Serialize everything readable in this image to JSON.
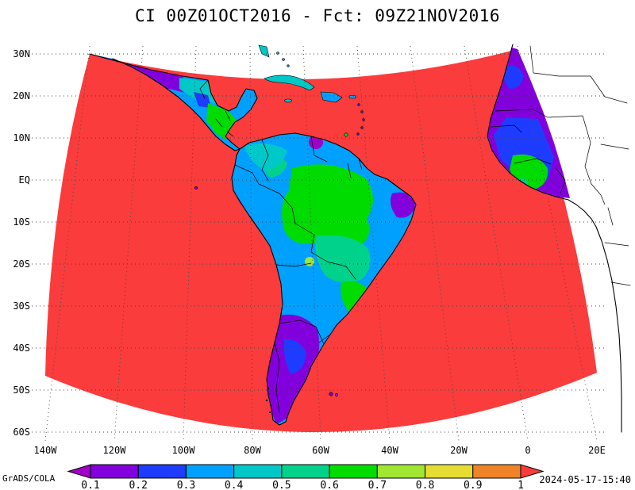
{
  "title": "CI 00Z01OCT2016 - Fct: 09Z21NOV2016",
  "map": {
    "lat_labels": [
      "30N",
      "20N",
      "10N",
      "EQ",
      "10S",
      "20S",
      "30S",
      "40S",
      "50S",
      "60S"
    ],
    "lon_labels": [
      "140W",
      "120W",
      "100W",
      "80W",
      "60W",
      "40W",
      "20W",
      "0",
      "20E"
    ],
    "ocean_fill_color": "#fa3c3c",
    "background_color": "#ffffff",
    "grid_style": "dotted"
  },
  "colorbar": {
    "tick_labels": [
      "0.1",
      "0.2",
      "0.3",
      "0.4",
      "0.5",
      "0.6",
      "0.7",
      "0.8",
      "0.9",
      "1"
    ],
    "colors": [
      "#a000c8",
      "#8200dc",
      "#1e3cff",
      "#00a0ff",
      "#00c8c8",
      "#00d28c",
      "#00dc00",
      "#a0e632",
      "#e6dc32",
      "#f08228",
      "#fa3c3c"
    ]
  },
  "footer": {
    "credit": "GrADS/COLA",
    "timestamp": "2024-05-17-15:40"
  },
  "chart_data": {
    "type": "heatmap",
    "title": "CI 00Z01OCT2016 - Fct: 09Z21NOV2016",
    "x_ticks": [
      "140W",
      "120W",
      "100W",
      "80W",
      "60W",
      "40W",
      "20W",
      "0",
      "20E"
    ],
    "y_ticks": [
      "30N",
      "20N",
      "10N",
      "EQ",
      "10S",
      "20S",
      "30S",
      "40S",
      "50S",
      "60S"
    ],
    "levels": [
      0.1,
      0.2,
      0.3,
      0.4,
      0.5,
      0.6,
      0.7,
      0.8,
      0.9,
      1
    ],
    "palette": [
      "#a000c8",
      "#8200dc",
      "#1e3cff",
      "#00a0ff",
      "#00c8c8",
      "#00d28c",
      "#00dc00",
      "#a0e632",
      "#e6dc32",
      "#f08228",
      "#fa3c3c"
    ],
    "legend_position": "bottom",
    "grid": "dotted",
    "observations": [
      "Fan-shaped data domain spanning roughly 140W-20E and 60S-30N; area outside the domain is white with map outlines only",
      "Ocean areas throughout the domain are saturated at the highest shade (red, value >= 1)",
      "South America shows values ~0.2-0.6 (blue/cyan/green) with low values ~0.1-0.2 (purple/violet) over Patagonia, the Andes and eastern Brazil tip",
      "Mexico and Central America show values ~0.1-0.5 with purple over northwest Mexico",
      "West African coastal strip inside the domain shows values ~0.1-0.4 (purple/blue) with a green patch near the Guinea coast"
    ]
  }
}
